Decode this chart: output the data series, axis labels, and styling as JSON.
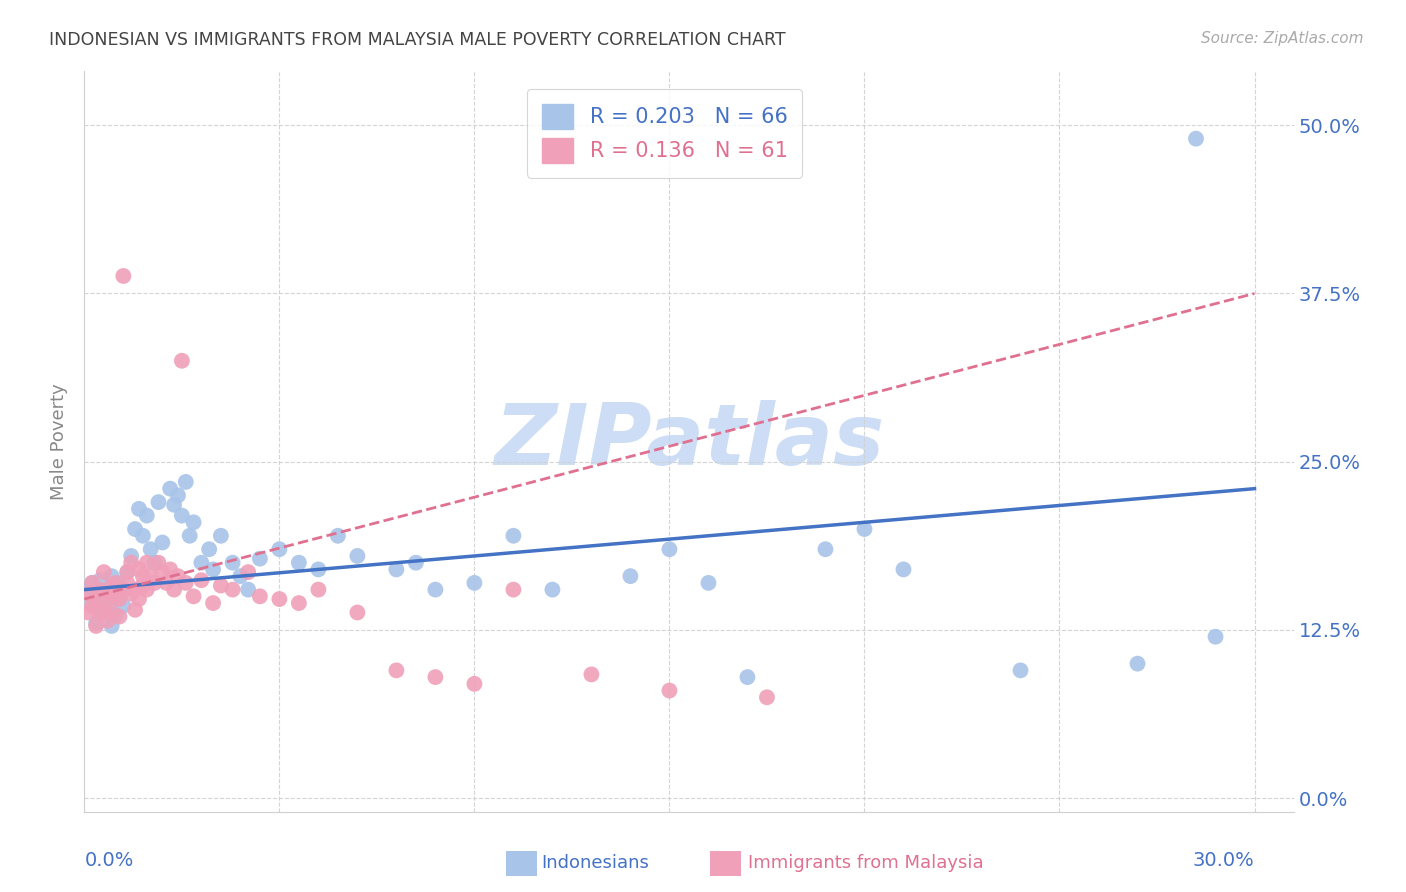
{
  "title": "INDONESIAN VS IMMIGRANTS FROM MALAYSIA MALE POVERTY CORRELATION CHART",
  "source": "Source: ZipAtlas.com",
  "ylabel": "Male Poverty",
  "ytick_labels": [
    "0.0%",
    "12.5%",
    "25.0%",
    "37.5%",
    "50.0%"
  ],
  "ytick_values": [
    0.0,
    0.125,
    0.25,
    0.375,
    0.5
  ],
  "xtick_labels": [
    "0.0%",
    "30.0%"
  ],
  "xtick_values": [
    0.0,
    0.3
  ],
  "xlim": [
    0.0,
    0.31
  ],
  "ylim": [
    -0.01,
    0.54
  ],
  "blue_scatter_color": "#a8c4e8",
  "pink_scatter_color": "#f0a0b8",
  "blue_line_color": "#4472c4",
  "pink_line_color": "#e07090",
  "grid_color": "#d0d0d0",
  "watermark_color": "#ccddf5",
  "watermark_text": "ZIPatlas",
  "legend_line1_r": "R = 0.203",
  "legend_line1_n": "N = 66",
  "legend_line2_r": "R = 0.136",
  "legend_line2_n": "N = 61",
  "label_indonesians": "Indonesians",
  "label_malaysia": "Immigrants from Malaysia",
  "indo_x": [
    0.001,
    0.002,
    0.002,
    0.003,
    0.003,
    0.004,
    0.004,
    0.005,
    0.005,
    0.006,
    0.006,
    0.007,
    0.007,
    0.008,
    0.008,
    0.009,
    0.009,
    0.01,
    0.01,
    0.011,
    0.012,
    0.013,
    0.014,
    0.015,
    0.016,
    0.017,
    0.018,
    0.019,
    0.02,
    0.022,
    0.023,
    0.024,
    0.025,
    0.026,
    0.027,
    0.028,
    0.03,
    0.032,
    0.033,
    0.035,
    0.038,
    0.04,
    0.042,
    0.045,
    0.05,
    0.055,
    0.06,
    0.065,
    0.07,
    0.08,
    0.085,
    0.09,
    0.1,
    0.11,
    0.12,
    0.14,
    0.15,
    0.16,
    0.17,
    0.19,
    0.2,
    0.21,
    0.24,
    0.27,
    0.285,
    0.29
  ],
  "indo_y": [
    0.155,
    0.145,
    0.16,
    0.13,
    0.148,
    0.162,
    0.142,
    0.15,
    0.138,
    0.152,
    0.143,
    0.165,
    0.128,
    0.155,
    0.136,
    0.148,
    0.16,
    0.143,
    0.155,
    0.168,
    0.18,
    0.2,
    0.215,
    0.195,
    0.21,
    0.185,
    0.175,
    0.22,
    0.19,
    0.23,
    0.218,
    0.225,
    0.21,
    0.235,
    0.195,
    0.205,
    0.175,
    0.185,
    0.17,
    0.195,
    0.175,
    0.165,
    0.155,
    0.178,
    0.185,
    0.175,
    0.17,
    0.195,
    0.18,
    0.17,
    0.175,
    0.155,
    0.16,
    0.195,
    0.155,
    0.165,
    0.185,
    0.16,
    0.09,
    0.185,
    0.2,
    0.17,
    0.095,
    0.1,
    0.49,
    0.12
  ],
  "malay_x": [
    0.001,
    0.001,
    0.002,
    0.002,
    0.003,
    0.003,
    0.004,
    0.004,
    0.005,
    0.005,
    0.005,
    0.006,
    0.006,
    0.007,
    0.007,
    0.008,
    0.008,
    0.009,
    0.009,
    0.01,
    0.01,
    0.011,
    0.011,
    0.012,
    0.012,
    0.013,
    0.013,
    0.014,
    0.014,
    0.015,
    0.015,
    0.016,
    0.016,
    0.017,
    0.018,
    0.019,
    0.02,
    0.021,
    0.022,
    0.023,
    0.024,
    0.025,
    0.026,
    0.028,
    0.03,
    0.033,
    0.035,
    0.038,
    0.042,
    0.045,
    0.05,
    0.055,
    0.06,
    0.07,
    0.08,
    0.09,
    0.1,
    0.11,
    0.13,
    0.15,
    0.175
  ],
  "malay_y": [
    0.138,
    0.152,
    0.143,
    0.16,
    0.128,
    0.148,
    0.155,
    0.138,
    0.152,
    0.14,
    0.168,
    0.132,
    0.148,
    0.158,
    0.138,
    0.15,
    0.16,
    0.135,
    0.148,
    0.155,
    0.388,
    0.168,
    0.16,
    0.175,
    0.152,
    0.14,
    0.155,
    0.17,
    0.148,
    0.158,
    0.165,
    0.175,
    0.155,
    0.165,
    0.16,
    0.175,
    0.168,
    0.16,
    0.17,
    0.155,
    0.165,
    0.325,
    0.16,
    0.15,
    0.162,
    0.145,
    0.158,
    0.155,
    0.168,
    0.15,
    0.148,
    0.145,
    0.155,
    0.138,
    0.095,
    0.09,
    0.085,
    0.155,
    0.092,
    0.08,
    0.075
  ],
  "indo_line_x": [
    0.0,
    0.3
  ],
  "indo_line_y": [
    0.155,
    0.23
  ],
  "malay_line_x": [
    0.0,
    0.3
  ],
  "malay_line_y": [
    0.148,
    0.375
  ]
}
